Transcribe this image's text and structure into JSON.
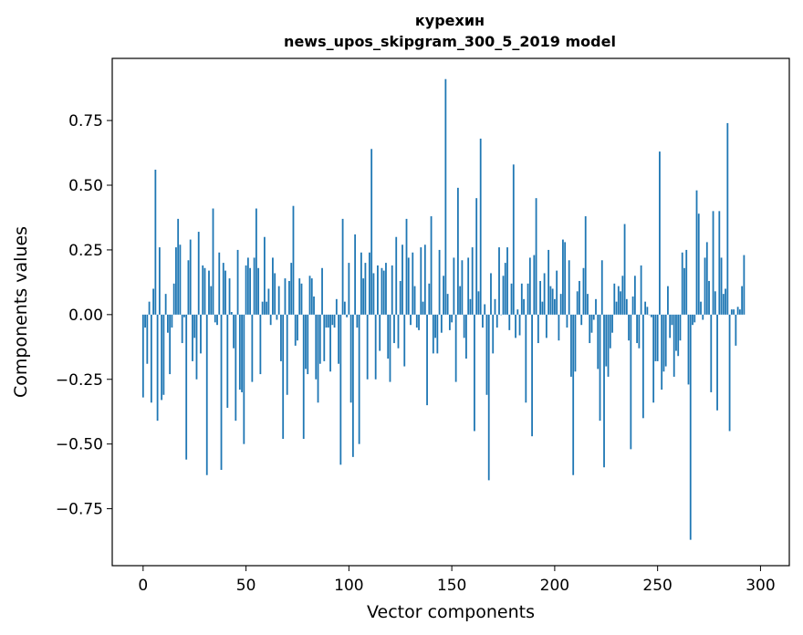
{
  "chart_data": {
    "type": "bar",
    "title": [
      "курехин",
      "news_upos_skipgram_300_5_2019 model"
    ],
    "xlabel": "Vector components",
    "ylabel": "Components values",
    "xlim": [
      -15,
      314
    ],
    "ylim": [
      -0.97,
      0.99
    ],
    "xticks": [
      0,
      50,
      100,
      150,
      200,
      250,
      300
    ],
    "xtick_labels": [
      "0",
      "50",
      "100",
      "150",
      "200",
      "250",
      "300"
    ],
    "yticks": [
      -0.75,
      -0.5,
      -0.25,
      0.0,
      0.25,
      0.5,
      0.75
    ],
    "ytick_labels": [
      "−0.75",
      "−0.50",
      "−0.25",
      "0.00",
      "0.25",
      "0.50",
      "0.75"
    ],
    "bar_color": "#1f77b4",
    "grid": false,
    "values": [
      -0.32,
      -0.05,
      -0.19,
      0.05,
      -0.34,
      0.1,
      0.56,
      -0.41,
      0.26,
      -0.33,
      -0.31,
      0.08,
      -0.07,
      -0.23,
      -0.05,
      0.12,
      0.26,
      0.37,
      0.27,
      -0.11,
      -0.01,
      -0.56,
      0.21,
      0.29,
      -0.18,
      -0.09,
      -0.25,
      0.32,
      -0.15,
      0.19,
      0.18,
      -0.62,
      0.17,
      0.11,
      0.41,
      -0.03,
      -0.04,
      0.24,
      -0.6,
      0.2,
      0.17,
      -0.36,
      0.14,
      0.01,
      -0.13,
      -0.41,
      0.25,
      -0.29,
      -0.3,
      -0.5,
      0.19,
      0.22,
      0.18,
      -0.26,
      0.22,
      0.41,
      0.18,
      -0.23,
      0.05,
      0.3,
      0.05,
      0.1,
      -0.04,
      0.22,
      0.16,
      -0.02,
      0.11,
      -0.18,
      -0.48,
      0.14,
      -0.31,
      0.13,
      0.2,
      0.42,
      -0.12,
      -0.1,
      0.14,
      0.12,
      -0.48,
      -0.21,
      -0.23,
      0.15,
      0.14,
      0.07,
      -0.25,
      -0.34,
      -0.19,
      0.18,
      -0.18,
      -0.05,
      -0.05,
      -0.22,
      -0.04,
      -0.05,
      0.06,
      -0.19,
      -0.58,
      0.37,
      0.05,
      -0.01,
      0.2,
      -0.34,
      -0.55,
      0.31,
      -0.05,
      -0.5,
      0.24,
      0.14,
      0.2,
      -0.25,
      0.24,
      0.64,
      0.16,
      -0.25,
      0.19,
      -0.14,
      0.18,
      0.17,
      0.2,
      -0.17,
      -0.26,
      0.19,
      -0.11,
      0.3,
      -0.13,
      0.13,
      0.27,
      -0.2,
      0.37,
      0.22,
      -0.04,
      0.24,
      0.11,
      -0.05,
      -0.06,
      0.26,
      0.05,
      0.27,
      -0.35,
      0.12,
      0.38,
      -0.15,
      -0.09,
      -0.15,
      0.25,
      -0.07,
      0.15,
      0.91,
      0.08,
      -0.06,
      -0.03,
      0.22,
      -0.26,
      0.49,
      0.11,
      0.21,
      -0.09,
      -0.17,
      0.22,
      0.06,
      0.26,
      -0.45,
      0.45,
      0.09,
      0.68,
      -0.05,
      0.04,
      -0.31,
      -0.64,
      0.16,
      -0.15,
      0.06,
      -0.05,
      0.26,
      0.0,
      0.15,
      0.2,
      0.26,
      -0.06,
      0.12,
      0.58,
      -0.09,
      0.02,
      -0.08,
      0.12,
      0.06,
      -0.34,
      0.12,
      0.22,
      -0.47,
      0.23,
      0.45,
      -0.11,
      0.13,
      0.05,
      0.16,
      -0.09,
      0.25,
      0.11,
      0.1,
      0.06,
      0.17,
      -0.1,
      0.08,
      0.29,
      0.28,
      -0.05,
      0.21,
      -0.24,
      -0.62,
      -0.22,
      0.09,
      0.13,
      -0.04,
      0.18,
      0.38,
      0.08,
      -0.11,
      -0.07,
      -0.02,
      0.06,
      -0.21,
      -0.41,
      0.21,
      -0.59,
      -0.2,
      -0.24,
      -0.13,
      -0.07,
      0.12,
      0.05,
      0.11,
      0.09,
      0.15,
      0.35,
      0.06,
      -0.1,
      -0.52,
      0.07,
      0.15,
      -0.11,
      -0.13,
      0.19,
      -0.4,
      0.05,
      0.03,
      0.0,
      -0.01,
      -0.34,
      -0.18,
      -0.18,
      0.63,
      -0.29,
      -0.22,
      -0.2,
      0.11,
      -0.09,
      -0.04,
      -0.24,
      -0.14,
      -0.16,
      -0.1,
      0.24,
      0.18,
      0.25,
      -0.27,
      -0.87,
      -0.04,
      -0.03,
      0.48,
      0.39,
      0.05,
      -0.02,
      0.22,
      0.28,
      0.13,
      -0.3,
      0.4,
      0.09,
      -0.37,
      0.4,
      0.22,
      0.08,
      0.1,
      0.74,
      -0.45,
      0.02,
      0.02,
      -0.12,
      0.03,
      0.02,
      0.11,
      0.23
    ]
  }
}
